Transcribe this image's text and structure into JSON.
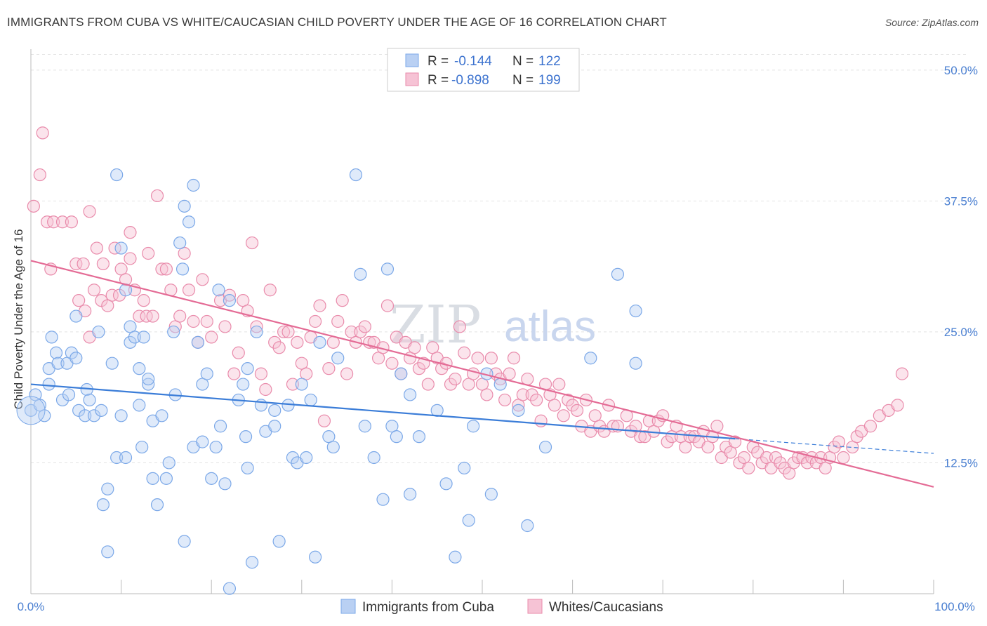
{
  "title": "IMMIGRANTS FROM CUBA VS WHITE/CAUCASIAN CHILD POVERTY UNDER THE AGE OF 16 CORRELATION CHART",
  "source": "Source: ZipAtlas.com",
  "watermark": {
    "part1": "ZIP",
    "part2": "atlas"
  },
  "legend": {
    "r_label": "R =",
    "n_label": "N =",
    "rows": [
      {
        "r": "-0.144",
        "n": "122",
        "color": "#7ba8e8",
        "fill": "#b9d0f3"
      },
      {
        "r": "-0.898",
        "n": "199",
        "color": "#e98bab",
        "fill": "#f6c3d5"
      }
    ]
  },
  "bottom_legend": [
    {
      "label": "Immigrants from Cuba",
      "color": "#7ba8e8",
      "fill": "#b9d0f3"
    },
    {
      "label": "Whites/Caucasians",
      "color": "#e98bab",
      "fill": "#f6c3d5"
    }
  ],
  "chart_data": {
    "type": "scatter",
    "title": "IMMIGRANTS FROM CUBA VS WHITE/CAUCASIAN CHILD POVERTY UNDER THE AGE OF 16 CORRELATION CHART",
    "xlabel": "",
    "ylabel": "Child Poverty Under the Age of 16",
    "xlim": [
      0,
      100
    ],
    "ylim": [
      0,
      52
    ],
    "x_tick_labels": [
      "0.0%",
      "100.0%"
    ],
    "y_ticks": [
      12.5,
      25.0,
      37.5,
      50.0
    ],
    "y_tick_labels": [
      "12.5%",
      "25.0%",
      "37.5%",
      "50.0%"
    ],
    "grid": true,
    "legend_position": "top-center",
    "series": [
      {
        "name": "Immigrants from Cuba",
        "color": "#5b8fe0",
        "line_color": "#3b7dd8",
        "trend": {
          "x": [
            0,
            78
          ],
          "y": [
            20.0,
            14.8
          ],
          "dashed_to": [
            100,
            13.4
          ]
        },
        "points": [
          [
            0,
            17.5
          ],
          [
            0.5,
            19
          ],
          [
            1,
            18
          ],
          [
            1.5,
            17
          ],
          [
            2,
            20
          ],
          [
            2,
            21.5
          ],
          [
            2.3,
            24.5
          ],
          [
            2.8,
            23
          ],
          [
            3,
            22
          ],
          [
            3.5,
            18.5
          ],
          [
            4,
            22
          ],
          [
            4.2,
            19
          ],
          [
            4.5,
            23
          ],
          [
            5,
            22.5
          ],
          [
            5,
            26.5
          ],
          [
            5.3,
            17.5
          ],
          [
            6,
            17
          ],
          [
            6.2,
            19.5
          ],
          [
            6.5,
            18.5
          ],
          [
            7,
            17
          ],
          [
            7.5,
            25
          ],
          [
            7.8,
            17.5
          ],
          [
            8,
            8.5
          ],
          [
            8.5,
            10
          ],
          [
            8.5,
            4
          ],
          [
            9,
            22
          ],
          [
            9.5,
            13
          ],
          [
            9.5,
            40
          ],
          [
            10,
            33
          ],
          [
            10,
            17
          ],
          [
            10.5,
            29
          ],
          [
            10.5,
            13
          ],
          [
            11,
            24
          ],
          [
            11,
            25.5
          ],
          [
            11.5,
            24.5
          ],
          [
            12,
            18
          ],
          [
            12,
            21.5
          ],
          [
            12.3,
            14
          ],
          [
            12.5,
            24.5
          ],
          [
            13,
            20
          ],
          [
            13,
            20.5
          ],
          [
            13.5,
            11
          ],
          [
            13.5,
            16.5
          ],
          [
            14,
            8.5
          ],
          [
            14.5,
            17
          ],
          [
            15,
            11
          ],
          [
            15.3,
            12.5
          ],
          [
            15.8,
            25
          ],
          [
            16,
            19
          ],
          [
            16.5,
            33.5
          ],
          [
            16.8,
            31
          ],
          [
            17,
            37
          ],
          [
            17,
            5
          ],
          [
            17.5,
            35.5
          ],
          [
            18,
            39
          ],
          [
            18,
            14
          ],
          [
            18.5,
            24
          ],
          [
            19,
            14.5
          ],
          [
            19,
            20
          ],
          [
            19.5,
            21
          ],
          [
            20,
            11
          ],
          [
            20.5,
            14
          ],
          [
            20.8,
            29
          ],
          [
            21,
            16
          ],
          [
            21.5,
            10.5
          ],
          [
            22,
            28
          ],
          [
            22,
            0.5
          ],
          [
            23,
            18.5
          ],
          [
            23.5,
            20
          ],
          [
            23.8,
            15
          ],
          [
            24,
            12
          ],
          [
            24,
            21.5
          ],
          [
            24.5,
            3
          ],
          [
            25,
            25
          ],
          [
            25.5,
            18
          ],
          [
            26,
            15.5
          ],
          [
            27,
            17.5
          ],
          [
            27,
            16
          ],
          [
            27.5,
            5
          ],
          [
            28.5,
            18
          ],
          [
            29,
            13
          ],
          [
            29.5,
            12.5
          ],
          [
            30,
            20
          ],
          [
            30.5,
            13
          ],
          [
            31,
            18.5
          ],
          [
            31.5,
            3.5
          ],
          [
            32,
            24
          ],
          [
            33,
            15
          ],
          [
            33.5,
            14
          ],
          [
            34,
            22.5
          ],
          [
            36,
            40
          ],
          [
            36.5,
            30.5
          ],
          [
            37,
            16
          ],
          [
            38,
            13
          ],
          [
            39,
            9
          ],
          [
            39.5,
            31
          ],
          [
            40,
            16
          ],
          [
            40.5,
            15
          ],
          [
            41,
            21
          ],
          [
            42,
            19
          ],
          [
            42,
            9.5
          ],
          [
            43,
            15
          ],
          [
            45,
            17.5
          ],
          [
            46,
            10.5
          ],
          [
            47,
            3.5
          ],
          [
            48,
            12
          ],
          [
            48.5,
            7
          ],
          [
            49,
            16
          ],
          [
            50.5,
            21
          ],
          [
            51,
            9.5
          ],
          [
            52,
            20
          ],
          [
            54,
            17.5
          ],
          [
            55,
            6.5
          ],
          [
            57,
            14
          ],
          [
            62,
            22.5
          ],
          [
            65,
            30.5
          ],
          [
            67,
            22
          ],
          [
            67,
            27
          ]
        ]
      },
      {
        "name": "Whites/Caucasians",
        "color": "#e8789f",
        "line_color": "#e46b95",
        "trend": {
          "x": [
            0,
            100
          ],
          "y": [
            31.8,
            10.2
          ]
        },
        "points": [
          [
            0.3,
            37
          ],
          [
            1,
            40
          ],
          [
            1.3,
            44
          ],
          [
            1.8,
            35.5
          ],
          [
            2.2,
            31
          ],
          [
            2.5,
            35.5
          ],
          [
            3.5,
            35.5
          ],
          [
            4.5,
            35.5
          ],
          [
            5,
            31.5
          ],
          [
            5.3,
            28
          ],
          [
            5.8,
            31.5
          ],
          [
            6,
            27
          ],
          [
            6.5,
            24.5
          ],
          [
            6.5,
            36.5
          ],
          [
            7,
            29
          ],
          [
            7.3,
            33
          ],
          [
            7.8,
            28
          ],
          [
            8,
            31.5
          ],
          [
            8.5,
            27.5
          ],
          [
            9,
            28.5
          ],
          [
            9.3,
            33
          ],
          [
            9.8,
            28.5
          ],
          [
            10,
            31
          ],
          [
            10.5,
            30
          ],
          [
            11,
            34.5
          ],
          [
            11,
            32
          ],
          [
            11.5,
            29
          ],
          [
            12,
            26.5
          ],
          [
            12.5,
            28
          ],
          [
            12.8,
            26.5
          ],
          [
            13,
            32.5
          ],
          [
            13.5,
            26.5
          ],
          [
            14,
            38
          ],
          [
            14.5,
            31
          ],
          [
            15,
            31
          ],
          [
            15.5,
            29
          ],
          [
            16,
            25.5
          ],
          [
            16.5,
            26.5
          ],
          [
            17,
            32.5
          ],
          [
            17.5,
            29
          ],
          [
            18,
            26
          ],
          [
            18.5,
            24
          ],
          [
            19,
            30
          ],
          [
            19.5,
            26
          ],
          [
            20,
            24.5
          ],
          [
            21,
            28
          ],
          [
            21.5,
            25.5
          ],
          [
            22,
            28.5
          ],
          [
            22.5,
            21
          ],
          [
            23,
            23
          ],
          [
            23.5,
            28
          ],
          [
            24,
            27
          ],
          [
            24.5,
            33.5
          ],
          [
            25,
            25.5
          ],
          [
            25.5,
            21
          ],
          [
            26,
            19.5
          ],
          [
            26.5,
            29
          ],
          [
            27,
            24
          ],
          [
            27.5,
            23.5
          ],
          [
            28,
            25
          ],
          [
            28.5,
            25
          ],
          [
            29,
            20
          ],
          [
            29.5,
            24
          ],
          [
            30,
            22
          ],
          [
            30.5,
            21
          ],
          [
            31,
            24.5
          ],
          [
            31.5,
            26
          ],
          [
            32,
            27.5
          ],
          [
            32.5,
            16.5
          ],
          [
            33,
            21.5
          ],
          [
            33.5,
            24
          ],
          [
            34,
            26
          ],
          [
            34.5,
            28
          ],
          [
            35,
            21
          ],
          [
            35.5,
            25
          ],
          [
            36,
            24
          ],
          [
            36.5,
            25
          ],
          [
            37,
            25.5
          ],
          [
            37.5,
            24
          ],
          [
            38,
            24
          ],
          [
            38.5,
            22.5
          ],
          [
            39,
            23.5
          ],
          [
            39.5,
            27.5
          ],
          [
            40,
            22
          ],
          [
            40.5,
            24.5
          ],
          [
            41,
            21
          ],
          [
            41.5,
            24
          ],
          [
            42,
            22.5
          ],
          [
            42.5,
            23.5
          ],
          [
            43,
            21.5
          ],
          [
            43.5,
            22
          ],
          [
            44,
            20
          ],
          [
            44.5,
            23.5
          ],
          [
            45,
            22.5
          ],
          [
            45.5,
            21.5
          ],
          [
            46,
            22
          ],
          [
            46.5,
            20
          ],
          [
            47,
            20.5
          ],
          [
            47.5,
            25.5
          ],
          [
            48,
            23
          ],
          [
            48.5,
            20
          ],
          [
            49,
            21
          ],
          [
            49.5,
            22.5
          ],
          [
            50,
            20
          ],
          [
            50.5,
            19
          ],
          [
            51,
            22.5
          ],
          [
            51.5,
            21
          ],
          [
            52,
            20.5
          ],
          [
            52.5,
            18.5
          ],
          [
            53,
            21
          ],
          [
            53.5,
            22.5
          ],
          [
            54,
            18
          ],
          [
            54.5,
            19
          ],
          [
            55,
            20.5
          ],
          [
            55.5,
            19
          ],
          [
            56,
            18.5
          ],
          [
            56.5,
            16.5
          ],
          [
            57,
            20
          ],
          [
            57.5,
            19
          ],
          [
            58,
            18
          ],
          [
            58.5,
            20
          ],
          [
            59,
            17
          ],
          [
            59.5,
            18.5
          ],
          [
            60,
            18
          ],
          [
            60.5,
            17.5
          ],
          [
            61,
            16
          ],
          [
            61.5,
            18.5
          ],
          [
            62,
            15.5
          ],
          [
            62.5,
            17
          ],
          [
            63,
            16
          ],
          [
            63.5,
            15.5
          ],
          [
            64,
            18
          ],
          [
            64.5,
            16
          ],
          [
            65,
            16
          ],
          [
            66,
            17
          ],
          [
            66.5,
            15.5
          ],
          [
            67,
            16
          ],
          [
            67.5,
            15
          ],
          [
            68,
            15
          ],
          [
            68.5,
            16.5
          ],
          [
            69,
            15.5
          ],
          [
            69.5,
            16.5
          ],
          [
            70,
            17
          ],
          [
            70.5,
            14.5
          ],
          [
            71,
            15
          ],
          [
            71.5,
            16
          ],
          [
            72,
            15
          ],
          [
            72.5,
            14
          ],
          [
            73,
            15
          ],
          [
            73.5,
            15
          ],
          [
            74,
            14.5
          ],
          [
            74.5,
            15.5
          ],
          [
            75,
            14
          ],
          [
            75.5,
            15
          ],
          [
            76,
            16
          ],
          [
            76.5,
            13
          ],
          [
            77,
            14
          ],
          [
            77.5,
            13.5
          ],
          [
            78,
            14.5
          ],
          [
            78.5,
            12.5
          ],
          [
            79,
            13
          ],
          [
            79.5,
            12
          ],
          [
            80,
            14
          ],
          [
            80.5,
            13.5
          ],
          [
            81,
            12.5
          ],
          [
            81.5,
            13
          ],
          [
            82,
            12
          ],
          [
            82.5,
            13
          ],
          [
            83,
            12.5
          ],
          [
            83.5,
            12
          ],
          [
            84,
            11.5
          ],
          [
            84.5,
            12.5
          ],
          [
            85,
            13
          ],
          [
            85.5,
            13
          ],
          [
            86,
            12.5
          ],
          [
            86.5,
            13
          ],
          [
            87,
            12.5
          ],
          [
            87.5,
            13
          ],
          [
            88,
            12
          ],
          [
            88.5,
            13
          ],
          [
            89,
            14
          ],
          [
            89.5,
            14.5
          ],
          [
            90,
            13
          ],
          [
            91,
            14
          ],
          [
            91.5,
            15
          ],
          [
            92,
            15.5
          ],
          [
            93,
            16
          ],
          [
            94,
            17
          ],
          [
            95,
            17.5
          ],
          [
            96,
            18
          ],
          [
            96.5,
            21
          ]
        ]
      }
    ]
  }
}
